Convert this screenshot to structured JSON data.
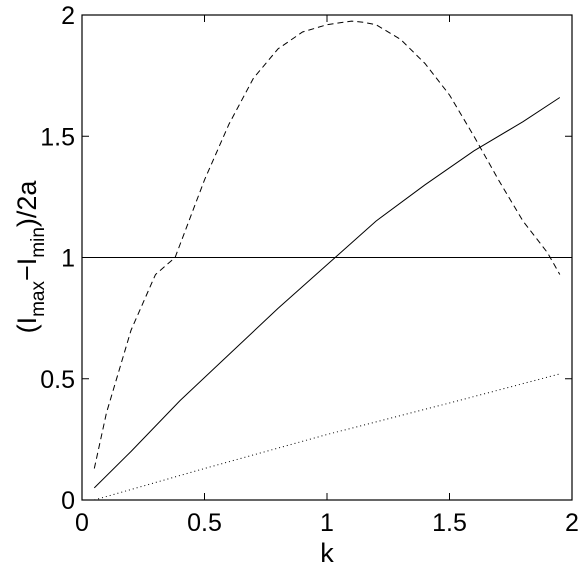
{
  "chart_data": {
    "type": "line",
    "title": "",
    "xlabel": "k",
    "ylabel": {
      "open": "(I",
      "sub1": "max",
      "mid": "−I",
      "sub2": "min",
      "close": ")/2a"
    },
    "xlim": [
      0,
      2
    ],
    "ylim": [
      0,
      2
    ],
    "x_ticks": [
      "0",
      "0.5",
      "1",
      "1.5",
      "2"
    ],
    "y_ticks": [
      "0",
      "0.5",
      "1",
      "1.5",
      "2"
    ],
    "grid": false,
    "legend": "none",
    "series": [
      {
        "style": "dashed",
        "color": "#000000",
        "x": [
          0.05,
          0.1,
          0.2,
          0.3,
          0.38,
          0.5,
          0.6,
          0.7,
          0.8,
          0.9,
          1.0,
          1.1,
          1.15,
          1.2,
          1.3,
          1.4,
          1.5,
          1.6,
          1.7,
          1.8,
          1.9,
          1.95
        ],
        "y": [
          0.13,
          0.36,
          0.7,
          0.93,
          1.0,
          1.32,
          1.55,
          1.74,
          1.86,
          1.93,
          1.96,
          1.975,
          1.97,
          1.96,
          1.9,
          1.8,
          1.67,
          1.5,
          1.32,
          1.15,
          1.02,
          0.93
        ]
      },
      {
        "style": "solid",
        "color": "#000000",
        "x": [
          0.05,
          0.2,
          0.4,
          0.6,
          0.8,
          1.0,
          1.2,
          1.4,
          1.6,
          1.8,
          1.95
        ],
        "y": [
          0.05,
          0.2,
          0.41,
          0.6,
          0.79,
          0.97,
          1.15,
          1.3,
          1.44,
          1.56,
          1.66
        ]
      },
      {
        "style": "dotted",
        "color": "#000000",
        "x": [
          0.05,
          0.5,
          1.0,
          1.5,
          1.95
        ],
        "y": [
          0.0,
          0.13,
          0.27,
          0.4,
          0.52
        ]
      },
      {
        "style": "solid",
        "color": "#000000",
        "x": [
          0,
          2
        ],
        "y": [
          1,
          1
        ]
      }
    ]
  }
}
